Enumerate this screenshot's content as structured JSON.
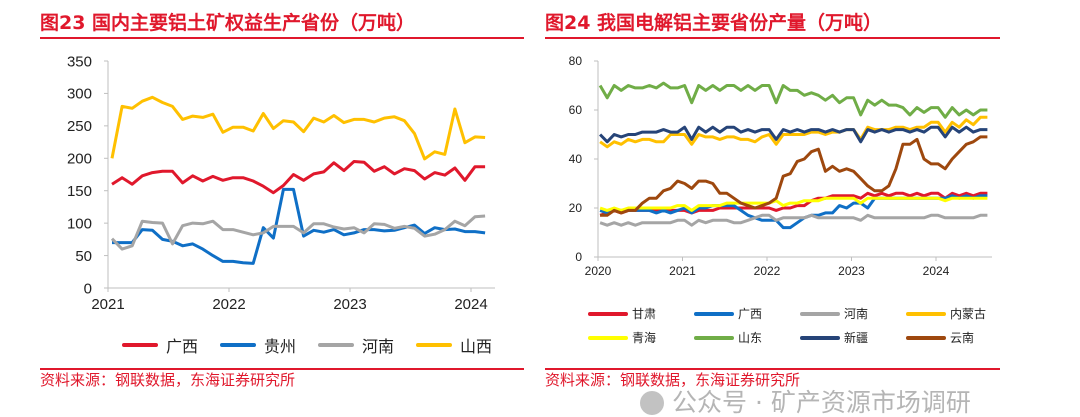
{
  "colors": {
    "accent": "#e0182c"
  },
  "watermark": "公众号 · 矿产资源市场调研",
  "chart_data": [
    {
      "type": "line",
      "title": "图23  国内主要铝土矿权益生产省份（万吨）",
      "source": "资料来源：钢联数据，东海证券研究所",
      "x_start": "2021-01",
      "x_freq": "monthly",
      "xticks": [
        "2021",
        "2022",
        "2023",
        "2024"
      ],
      "ylim": [
        0,
        350
      ],
      "yticks": [
        0,
        50,
        100,
        150,
        200,
        250,
        300,
        350
      ],
      "grid": false,
      "legend": "bottom",
      "series": [
        {
          "name": "广西",
          "color": "#e0182c",
          "values": [
            160,
            170,
            160,
            173,
            178,
            180,
            180,
            162,
            173,
            165,
            172,
            166,
            170,
            170,
            165,
            157,
            147,
            158,
            175,
            166,
            176,
            179,
            193,
            181,
            195,
            194,
            180,
            187,
            176,
            184,
            181,
            168,
            178,
            174,
            185,
            166,
            187,
            187
          ]
        },
        {
          "name": "贵州",
          "color": "#0f6fc6",
          "values": [
            70,
            70,
            70,
            90,
            89,
            75,
            72,
            65,
            68,
            60,
            50,
            41,
            41,
            39,
            38,
            93,
            77,
            152,
            152,
            80,
            89,
            86,
            90,
            82,
            85,
            90,
            90,
            88,
            89,
            93,
            97,
            84,
            93,
            90,
            91,
            87,
            87,
            85
          ]
        },
        {
          "name": "河南",
          "color": "#a5a5a5",
          "values": [
            76,
            60,
            65,
            103,
            101,
            100,
            68,
            96,
            100,
            99,
            103,
            90,
            90,
            86,
            82,
            85,
            95,
            95,
            95,
            85,
            99,
            99,
            94,
            91,
            93,
            85,
            99,
            98,
            92,
            95,
            92,
            80,
            83,
            90,
            103,
            96,
            110,
            111
          ]
        },
        {
          "name": "山西",
          "color": "#ffc000",
          "values": [
            200,
            280,
            277,
            288,
            294,
            286,
            280,
            260,
            265,
            263,
            268,
            240,
            248,
            248,
            242,
            269,
            246,
            258,
            256,
            241,
            262,
            256,
            266,
            255,
            260,
            260,
            256,
            262,
            264,
            258,
            238,
            199,
            210,
            206,
            276,
            224,
            233,
            232
          ]
        }
      ]
    },
    {
      "type": "line",
      "title": "图24  我国电解铝主要省份产量（万吨）",
      "source": "资料来源：钢联数据，东海证券研究所",
      "x_start": "2020-01",
      "x_freq": "monthly",
      "xticks": [
        "2020",
        "2021",
        "2022",
        "2023",
        "2024"
      ],
      "ylim": [
        0,
        80
      ],
      "yticks": [
        0,
        20,
        40,
        60,
        80
      ],
      "grid": false,
      "legend": "bottom",
      "series": [
        {
          "name": "甘肃",
          "color": "#e0182c",
          "values": [
            17,
            18,
            19,
            18,
            19,
            19,
            19,
            19,
            19,
            19,
            19,
            19,
            19,
            18,
            19,
            19,
            19,
            20,
            20,
            20,
            20,
            20,
            20,
            20,
            20,
            19,
            20,
            20,
            21,
            21,
            23,
            24,
            24,
            25,
            25,
            25,
            25,
            24,
            26,
            25,
            26,
            25,
            26,
            26,
            25,
            26,
            25,
            26,
            26,
            24,
            26,
            25,
            26,
            25,
            26,
            26
          ]
        },
        {
          "name": "广西",
          "color": "#0f6fc6",
          "values": [
            19,
            18,
            19,
            19,
            19,
            19,
            19,
            19,
            18,
            19,
            18,
            19,
            20,
            18,
            20,
            20,
            21,
            21,
            21,
            21,
            19,
            17,
            16,
            15,
            15,
            15,
            12,
            12,
            14,
            16,
            17,
            17,
            18,
            18,
            21,
            20,
            22,
            22,
            20,
            24,
            24,
            24,
            24,
            24,
            24,
            24,
            24,
            24,
            24,
            24,
            25,
            24,
            25,
            24,
            25,
            25
          ]
        },
        {
          "name": "河南",
          "color": "#a5a5a5",
          "values": [
            14,
            13,
            14,
            13,
            14,
            13,
            14,
            14,
            14,
            14,
            14,
            15,
            15,
            13,
            15,
            14,
            15,
            15,
            15,
            14,
            14,
            15,
            16,
            17,
            17,
            15,
            16,
            16,
            16,
            16,
            17,
            16,
            16,
            16,
            16,
            16,
            16,
            15,
            17,
            16,
            16,
            16,
            16,
            16,
            16,
            16,
            16,
            17,
            17,
            16,
            16,
            16,
            16,
            16,
            17,
            17
          ]
        },
        {
          "name": "内蒙古",
          "color": "#ffc000",
          "values": [
            47,
            45,
            47,
            46,
            48,
            47,
            48,
            48,
            47,
            47,
            50,
            50,
            50,
            46,
            50,
            49,
            49,
            48,
            49,
            49,
            48,
            48,
            47,
            49,
            50,
            46,
            50,
            50,
            50,
            50,
            51,
            51,
            50,
            51,
            51,
            52,
            52,
            48,
            53,
            52,
            52,
            52,
            53,
            53,
            52,
            53,
            53,
            55,
            55,
            51,
            55,
            53,
            56,
            54,
            57,
            57
          ]
        },
        {
          "name": "青海",
          "color": "#ffff00",
          "values": [
            20,
            19,
            20,
            19,
            20,
            20,
            20,
            20,
            20,
            20,
            20,
            21,
            21,
            19,
            21,
            21,
            21,
            21,
            22,
            22,
            22,
            22,
            22,
            22,
            22,
            23,
            21,
            22,
            22,
            23,
            23,
            23,
            24,
            24,
            24,
            24,
            24,
            22,
            24,
            24,
            24,
            24,
            24,
            24,
            24,
            24,
            24,
            24,
            24,
            23,
            24,
            24,
            24,
            24,
            24,
            24
          ]
        },
        {
          "name": "山东",
          "color": "#70ad47",
          "values": [
            70,
            65,
            70,
            68,
            70,
            69,
            69,
            70,
            69,
            71,
            69,
            69,
            70,
            63,
            70,
            68,
            70,
            68,
            70,
            70,
            68,
            70,
            68,
            70,
            70,
            63,
            70,
            68,
            68,
            66,
            67,
            66,
            64,
            66,
            63,
            65,
            65,
            58,
            64,
            62,
            64,
            62,
            62,
            61,
            58,
            61,
            59,
            61,
            61,
            57,
            61,
            58,
            60,
            58,
            60,
            60
          ]
        },
        {
          "name": "新疆",
          "color": "#264478",
          "values": [
            50,
            47,
            50,
            49,
            50,
            50,
            51,
            51,
            51,
            52,
            51,
            51,
            53,
            48,
            53,
            51,
            53,
            51,
            53,
            53,
            51,
            52,
            51,
            52,
            52,
            48,
            52,
            51,
            52,
            51,
            52,
            52,
            51,
            52,
            51,
            52,
            52,
            47,
            52,
            51,
            52,
            51,
            52,
            52,
            51,
            52,
            51,
            53,
            53,
            49,
            53,
            51,
            53,
            51,
            52,
            52
          ]
        },
        {
          "name": "云南",
          "color": "#9e480e",
          "values": [
            17,
            17,
            19,
            18,
            19,
            19,
            22,
            24,
            24,
            27,
            28,
            31,
            30,
            28,
            31,
            31,
            30,
            26,
            26,
            24,
            22,
            21,
            20,
            21,
            22,
            24,
            33,
            34,
            39,
            40,
            43,
            44,
            35,
            37,
            35,
            36,
            35,
            32,
            29,
            27,
            27,
            29,
            36,
            46,
            46,
            48,
            40,
            38,
            38,
            36,
            40,
            43,
            46,
            47,
            49,
            49
          ]
        }
      ]
    }
  ]
}
